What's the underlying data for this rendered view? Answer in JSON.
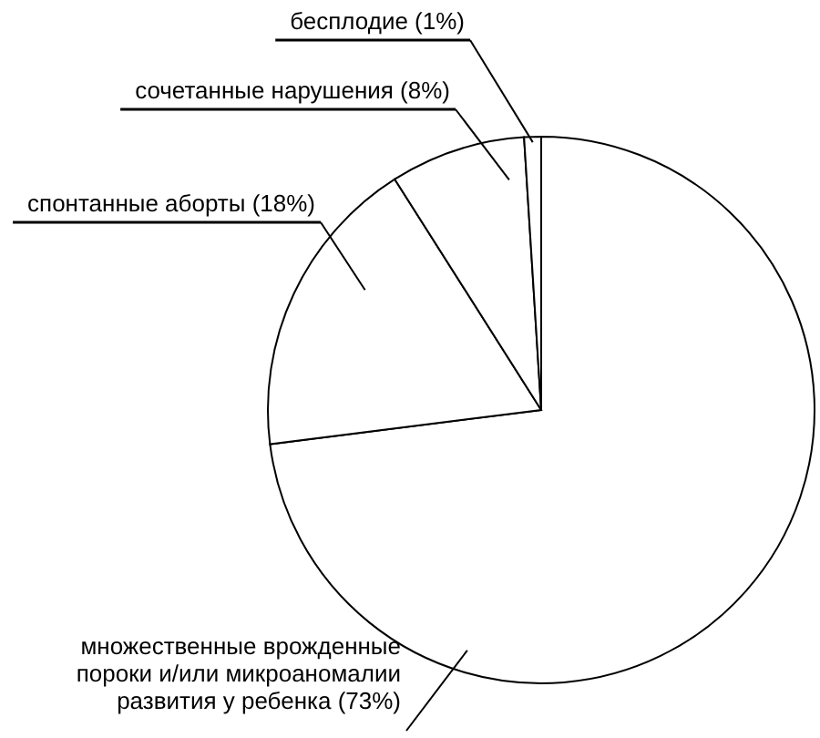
{
  "chart_data": {
    "type": "pie",
    "categories": [
      "множественные врожденные пороки и/или микроаномалии развития у ребенка",
      "спонтанные аборты",
      "сочетанные нарушения",
      "бесплодие"
    ],
    "values": [
      73,
      18,
      8,
      1
    ],
    "value_labels": [
      "(73%)",
      "(18%)",
      "(8%)",
      "(1%)"
    ],
    "colors": [
      "#ffffff",
      "#ffffff",
      "#ffffff",
      "#ffffff"
    ]
  }
}
